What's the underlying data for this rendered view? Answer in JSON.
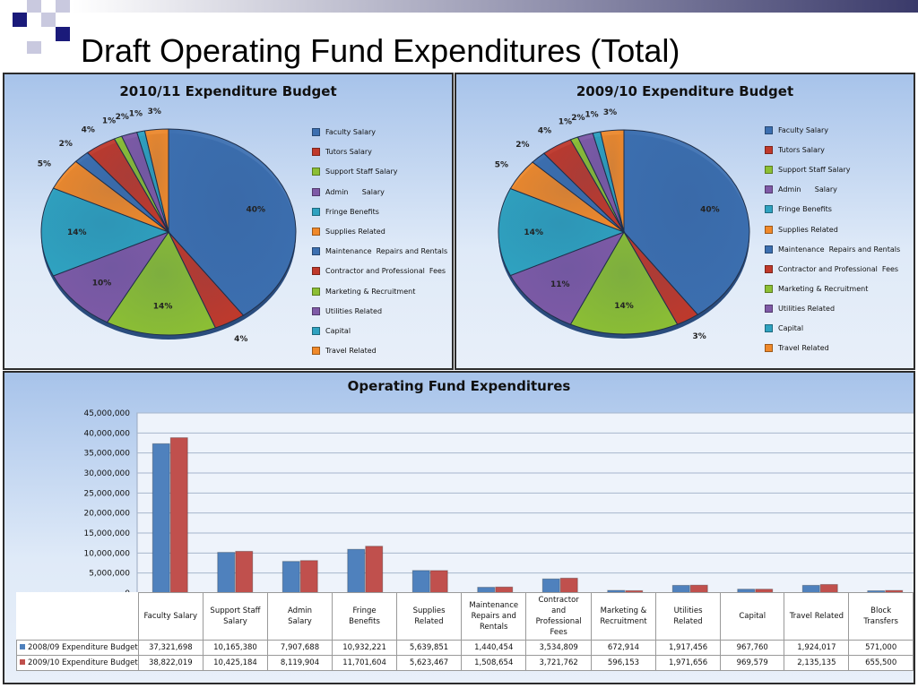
{
  "slide": {
    "title": "Draft Operating Fund Expenditures (Total)"
  },
  "colors": {
    "series_2008_09": "#4f81bd",
    "series_2009_10": "#c0504d",
    "pie": [
      "#3c6fb0",
      "#c0392b",
      "#8cbf34",
      "#7f5aa7",
      "#2fa2c0",
      "#f0892a",
      "#3c6fb0",
      "#c0392b",
      "#8cbf34",
      "#7f5aa7",
      "#2fa2c0",
      "#f0892a"
    ]
  },
  "legend_labels": [
    "Faculty Salary",
    "Tutors Salary",
    "Support Staff Salary",
    "Admin      Salary",
    "Fringe Benefits",
    "Supplies Related",
    "Maintenance  Repairs and Rentals",
    "Contractor and Professional  Fees",
    "Marketing & Recruitment",
    "Utilities Related",
    "Capital",
    "Travel Related"
  ],
  "chart_data": [
    {
      "type": "pie",
      "title": "2010/11 Expenditure Budget",
      "categories": [
        "Faculty Salary",
        "Tutors Salary",
        "Support Staff Salary",
        "Admin      Salary",
        "Fringe Benefits",
        "Supplies Related",
        "Maintenance  Repairs and Rentals",
        "Contractor and Professional  Fees",
        "Marketing & Recruitment",
        "Utilities Related",
        "Capital",
        "Travel Related"
      ],
      "values": [
        40,
        4,
        14,
        10,
        14,
        5,
        2,
        4,
        1,
        2,
        1,
        3
      ],
      "data_labels": [
        "40%",
        "4%",
        "14%",
        "10%",
        "14%",
        "5%",
        "2%",
        "4%",
        "1%",
        "2%",
        "1%",
        "3%"
      ],
      "legend_position": "right"
    },
    {
      "type": "pie",
      "title": "2009/10 Expenditure Budget",
      "categories": [
        "Faculty Salary",
        "Tutors Salary",
        "Support Staff Salary",
        "Admin      Salary",
        "Fringe Benefits",
        "Supplies Related",
        "Maintenance  Repairs and Rentals",
        "Contractor and Professional  Fees",
        "Marketing & Recruitment",
        "Utilities Related",
        "Capital",
        "Travel Related"
      ],
      "values": [
        40,
        3,
        14,
        11,
        14,
        5,
        2,
        4,
        1,
        2,
        1,
        3
      ],
      "data_labels": [
        "40%",
        "3%",
        "14%",
        "11%",
        "14%",
        "5%",
        "2%",
        "4%",
        "1%",
        "2%",
        "1%",
        "3%"
      ],
      "legend_position": "right"
    },
    {
      "type": "bar",
      "title": "Operating Fund Expenditures",
      "categories": [
        "Faculty Salary",
        "Support Staff Salary",
        "Admin Salary",
        "Fringe Benefits",
        "Supplies Related",
        "Maintenance Repairs and Rentals",
        "Contractor and Professional Fees",
        "Marketing & Recruitment",
        "Utilities Related",
        "Capital",
        "Travel Related",
        "Block Transfers"
      ],
      "category_lines": [
        [
          "Faculty Salary"
        ],
        [
          "Support Staff",
          "Salary"
        ],
        [
          "Admin",
          "Salary"
        ],
        [
          "Fringe",
          "Benefits"
        ],
        [
          "Supplies",
          "Related"
        ],
        [
          "Maintenance",
          "Repairs and",
          "Rentals"
        ],
        [
          "Contractor",
          "and",
          "Professional",
          "Fees"
        ],
        [
          "Marketing &",
          "Recruitment"
        ],
        [
          "Utilities",
          "Related"
        ],
        [
          "Capital"
        ],
        [
          "Travel Related"
        ],
        [
          "Block",
          "Transfers"
        ]
      ],
      "series": [
        {
          "name": "2008/09 Expenditure  Budget",
          "values": [
            37321698,
            10165380,
            7907688,
            10932221,
            5639851,
            1440454,
            3534809,
            672914,
            1917456,
            967760,
            1924017,
            571000
          ],
          "display": [
            "37,321,698",
            "10,165,380",
            "7,907,688",
            "10,932,221",
            "5,639,851",
            "1,440,454",
            "3,534,809",
            "672,914",
            "1,917,456",
            "967,760",
            "1,924,017",
            "571,000"
          ]
        },
        {
          "name": "2009/10 Expenditure  Budget",
          "values": [
            38822019,
            10425184,
            8119904,
            11701604,
            5623467,
            1508654,
            3721762,
            596153,
            1971656,
            969579,
            2135135,
            655500
          ],
          "display": [
            "38,822,019",
            "10,425,184",
            "8,119,904",
            "11,701,604",
            "5,623,467",
            "1,508,654",
            "3,721,762",
            "596,153",
            "1,971,656",
            "969,579",
            "2,135,135",
            "655,500"
          ]
        }
      ],
      "ylim": [
        0,
        45000000
      ],
      "yticks": [
        "0",
        "5,000,000",
        "10,000,000",
        "15,000,000",
        "20,000,000",
        "25,000,000",
        "30,000,000",
        "35,000,000",
        "40,000,000",
        "45,000,000"
      ],
      "grid": true,
      "legend_position": "data-table"
    }
  ]
}
